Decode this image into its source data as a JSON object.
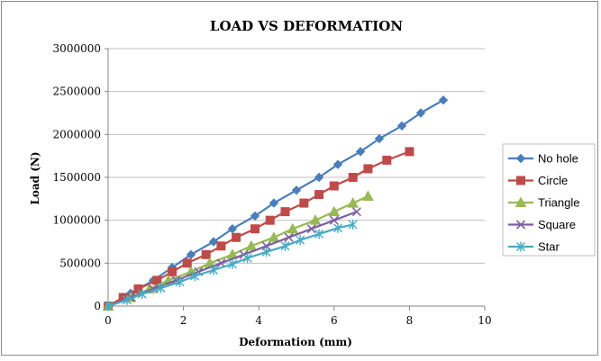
{
  "chart_data": {
    "type": "scatter",
    "title": "LOAD VS DEFORMATION",
    "xlabel": "Deformation (mm)",
    "ylabel": "Load (N)",
    "xlim": [
      0,
      10
    ],
    "ylim": [
      0,
      3000000
    ],
    "x_ticks": [
      "0",
      "2",
      "4",
      "6",
      "8",
      "10"
    ],
    "y_ticks": [
      "0",
      "500000",
      "1000000",
      "1500000",
      "2000000",
      "2500000",
      "3000000"
    ],
    "grid": true,
    "legend_position": "right",
    "series": [
      {
        "name": "No hole",
        "color": "#4a7ebb",
        "marker": "diamond",
        "x": [
          0,
          0.6,
          1.2,
          1.7,
          2.2,
          2.8,
          3.3,
          3.9,
          4.4,
          5.0,
          5.6,
          6.1,
          6.7,
          7.2,
          7.8,
          8.3,
          8.9
        ],
        "y": [
          0,
          150000,
          300000,
          450000,
          600000,
          750000,
          900000,
          1050000,
          1200000,
          1350000,
          1500000,
          1650000,
          1800000,
          1950000,
          2100000,
          2250000,
          2400000
        ]
      },
      {
        "name": "Circle",
        "color": "#be4b48",
        "marker": "square",
        "x": [
          0,
          0.4,
          0.8,
          1.3,
          1.7,
          2.1,
          2.6,
          3.0,
          3.4,
          3.9,
          4.3,
          4.7,
          5.2,
          5.6,
          6.0,
          6.5,
          6.9,
          7.4,
          8.0
        ],
        "y": [
          0,
          100000,
          200000,
          300000,
          400000,
          500000,
          600000,
          700000,
          800000,
          900000,
          1000000,
          1100000,
          1200000,
          1300000,
          1400000,
          1500000,
          1600000,
          1700000,
          1800000
        ]
      },
      {
        "name": "Triangle",
        "color": "#98b954",
        "marker": "triangle",
        "x": [
          0,
          0.6,
          1.1,
          1.6,
          2.2,
          2.7,
          3.3,
          3.8,
          4.4,
          4.9,
          5.5,
          6.0,
          6.5,
          6.9
        ],
        "y": [
          0,
          100000,
          200000,
          300000,
          400000,
          500000,
          600000,
          700000,
          800000,
          900000,
          1000000,
          1100000,
          1200000,
          1280000
        ]
      },
      {
        "name": "Square",
        "color": "#7d60a0",
        "marker": "x",
        "x": [
          0,
          0.6,
          1.2,
          1.8,
          2.4,
          3.0,
          3.6,
          4.2,
          4.8,
          5.4,
          6.0,
          6.6
        ],
        "y": [
          0,
          100000,
          200000,
          300000,
          400000,
          500000,
          600000,
          700000,
          800000,
          900000,
          1000000,
          1100000
        ]
      },
      {
        "name": "Star",
        "color": "#46aac5",
        "marker": "star",
        "x": [
          0,
          0.5,
          0.9,
          1.4,
          1.9,
          2.3,
          2.8,
          3.3,
          3.7,
          4.2,
          4.7,
          5.1,
          5.6,
          6.1,
          6.5
        ],
        "y": [
          0,
          70000,
          140000,
          210000,
          280000,
          350000,
          420000,
          490000,
          560000,
          630000,
          700000,
          770000,
          840000,
          910000,
          950000
        ]
      }
    ]
  }
}
